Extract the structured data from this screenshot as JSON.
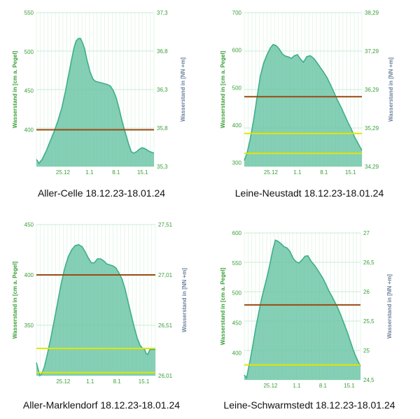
{
  "colors": {
    "area": "#3fae8c",
    "area_fill": "#6fc7a8",
    "grid_h": "#c9ecd4",
    "grid_v": "#dcf2e2",
    "left_axis": "#3a9f37",
    "right_axis": "#6d83a0",
    "brown": "#9a4a12",
    "yellow": "#e2e600",
    "red": "#cc2a2a"
  },
  "charts": [
    {
      "caption": "Aller-Celle 18.12.23-18.01.24",
      "ylabel_left": "Wasserstand in [cm a. Pegel]",
      "ylabel_right": "Wasserstand in [NN +m]"
    },
    {
      "caption": "Leine-Neustadt 18.12.23-18.01.24",
      "ylabel_left": "Wasserstand in [cm a. Pegel]",
      "ylabel_right": "Wasserstand in [NN +m]"
    },
    {
      "caption": "Aller-Marklendorf 18.12.23-18.01.24",
      "ylabel_left": "Wasserstand in [cm a. Pegel]",
      "ylabel_right": "Wasserstand in [NN +m]"
    },
    {
      "caption": "Leine-Schwarmstedt 18.12.23-18.01.24",
      "ylabel_left": "Wasserstand in [cm a. Pegel]",
      "ylabel_right": "Wasserstand in [NN +m]"
    }
  ],
  "chart_data": [
    {
      "type": "area",
      "title": "Aller-Celle 18.12.23-18.01.24",
      "x_tick_labels": [
        "25.12",
        "1.1",
        "8.1",
        "15.1"
      ],
      "x_tick_days": [
        7,
        14,
        21,
        28
      ],
      "xlim_days": [
        0,
        31
      ],
      "ylabel": "Wasserstand in [cm a. Pegel]",
      "ylim": [
        353,
        550
      ],
      "y_ticks": [
        400,
        450,
        500,
        550
      ],
      "y_tick_labels": [
        "400",
        "450",
        "500",
        "550"
      ],
      "ylabel_right": "Wasserstand in [NN +m]",
      "y_ticks_right": [
        "35,3",
        "35,8",
        "36,3",
        "36,8",
        "37,3"
      ],
      "grid": true,
      "series": [
        {
          "x": [
            0,
            0.7,
            1.5,
            2.6,
            3.6,
            4.7,
            5.7,
            6.7,
            7.6,
            8.4,
            9.2,
            9.9,
            10.5,
            11.1,
            11.6,
            12.1,
            12.7,
            13.3,
            14.1,
            14.9,
            15.6,
            16.4,
            17.2,
            17.9,
            18.7,
            19.5,
            20.3,
            21.1,
            21.9,
            22.7,
            23.5,
            24.3,
            25.0,
            25.7,
            26.4,
            27.1,
            27.8,
            28.5,
            29.2,
            29.9,
            30.5,
            31
          ],
          "values": [
            362,
            357,
            362,
            373,
            385,
            398,
            412,
            428,
            448,
            468,
            488,
            505,
            514,
            517,
            517,
            512,
            504,
            490,
            475,
            465,
            462,
            461,
            460,
            459,
            458,
            456,
            450,
            440,
            425,
            409,
            395,
            382,
            372,
            370,
            372,
            375,
            377,
            376,
            374,
            372,
            371,
            370
          ]
        }
      ],
      "reference_lines": [
        {
          "value": 400,
          "color": "#9a4a12"
        }
      ]
    },
    {
      "type": "area",
      "title": "Leine-Neustadt 18.12.23-18.01.24",
      "x_tick_labels": [
        "25.12",
        "1.1",
        "8.1",
        "15.1"
      ],
      "x_tick_days": [
        7,
        14,
        21,
        28
      ],
      "xlim_days": [
        0,
        31
      ],
      "ylabel": "Wasserstand in [cm a. Pegel]",
      "ylim": [
        290,
        700
      ],
      "y_ticks": [
        300,
        400,
        500,
        600,
        700
      ],
      "y_tick_labels": [
        "300",
        "400",
        "500",
        "600",
        "700"
      ],
      "ylabel_right": "Wasserstand in [NN +m]",
      "y_ticks_right": [
        "34,29",
        "35,29",
        "36,29",
        "37,29",
        "38,29"
      ],
      "grid": true,
      "series": [
        {
          "x": [
            0,
            0.7,
            1.5,
            2.4,
            3.3,
            4.2,
            5.1,
            6.0,
            6.8,
            7.6,
            8.4,
            9.2,
            10.0,
            10.8,
            11.6,
            12.4,
            13.2,
            14.0,
            14.8,
            15.6,
            16.5,
            17.4,
            18.3,
            19.2,
            20.1,
            21.0,
            21.9,
            22.8,
            23.7,
            24.6,
            25.5,
            26.4,
            27.3,
            28.2,
            29.0,
            29.8,
            30.5,
            31
          ],
          "values": [
            306,
            325,
            360,
            410,
            470,
            530,
            565,
            588,
            605,
            615,
            612,
            603,
            590,
            584,
            582,
            578,
            585,
            588,
            576,
            568,
            583,
            585,
            578,
            566,
            553,
            540,
            525,
            506,
            486,
            466,
            448,
            428,
            408,
            390,
            370,
            355,
            342,
            333
          ]
        }
      ],
      "reference_lines": [
        {
          "value": 476,
          "color": "#9a4a12"
        },
        {
          "value": 378,
          "color": "#e2e600"
        },
        {
          "value": 325,
          "color": "#e2e600"
        }
      ]
    },
    {
      "type": "area",
      "title": "Aller-Marklendorf 18.12.23-18.01.24",
      "x_tick_labels": [
        "25.12",
        "1.1",
        "8.1",
        "15.1"
      ],
      "x_tick_days": [
        7,
        14,
        21,
        28
      ],
      "xlim_days": [
        0,
        31
      ],
      "ylabel": "Wasserstand in [cm a. Pegel]",
      "ylim": [
        300,
        450
      ],
      "y_ticks": [
        350,
        400,
        450
      ],
      "y_tick_labels": [
        "350",
        "400",
        "450"
      ],
      "ylabel_right": "Wasserstand in [NN +m]",
      "y_ticks_right": [
        "26,01",
        "26,51",
        "27,01",
        "27,51"
      ],
      "grid": true,
      "series": [
        {
          "x": [
            0,
            0.4,
            0.9,
            1.4,
            2.1,
            2.9,
            3.8,
            4.7,
            5.6,
            6.5,
            7.4,
            8.3,
            9.2,
            10.1,
            11.0,
            11.9,
            12.7,
            13.5,
            14.3,
            15.1,
            15.9,
            16.7,
            17.5,
            18.3,
            19.1,
            19.9,
            20.7,
            21.5,
            22.3,
            23.1,
            23.9,
            24.7,
            25.5,
            26.3,
            27.0,
            27.7,
            28.2,
            28.6,
            29.0,
            29.6,
            30.3,
            31
          ],
          "values": [
            313,
            307,
            300,
            302,
            309,
            322,
            338,
            356,
            374,
            392,
            407,
            418,
            425,
            429,
            430,
            428,
            423,
            417,
            412,
            412,
            416,
            416,
            414,
            411,
            410,
            409,
            407,
            402,
            396,
            386,
            373,
            360,
            348,
            337,
            330,
            327,
            326,
            322,
            321,
            326,
            326,
            326
          ]
        }
      ],
      "reference_lines": [
        {
          "value": 400,
          "color": "#9a4a12"
        },
        {
          "value": 327,
          "color": "#e2e600"
        },
        {
          "value": 303,
          "color": "#e2e600"
        }
      ]
    },
    {
      "type": "area",
      "title": "Leine-Schwarmstedt 18.12.23-18.01.24",
      "x_tick_labels": [
        "25.12",
        "1.1",
        "8.1",
        "15.1"
      ],
      "x_tick_days": [
        7,
        14,
        21,
        28
      ],
      "xlim_days": [
        0,
        31
      ],
      "ylabel": "Wasserstand in [cm a. Pegel]",
      "ylim": [
        355,
        600
      ],
      "y_ticks": [
        400,
        450,
        500,
        550,
        600
      ],
      "y_tick_labels": [
        "400",
        "450",
        "500",
        "550",
        "600"
      ],
      "ylabel_right": "Wasserstand in [NN +m]",
      "y_ticks_right": [
        "24,5",
        "25",
        "25,5",
        "26",
        "26,5",
        "27"
      ],
      "grid": true,
      "series": [
        {
          "x": [
            0,
            0.6,
            1.3,
            2.2,
            3.0,
            3.8,
            4.6,
            5.4,
            6.2,
            6.9,
            7.6,
            8.3,
            9.0,
            9.8,
            10.6,
            11.4,
            12.2,
            13.0,
            13.8,
            14.6,
            15.4,
            16.2,
            17.0,
            17.8,
            18.6,
            19.4,
            20.2,
            21.0,
            21.8,
            22.6,
            23.4,
            24.2,
            25.0,
            25.8,
            26.6,
            27.4,
            28.2,
            29.0,
            29.8,
            30.5,
            31
          ],
          "values": [
            363,
            358,
            380,
            410,
            440,
            465,
            490,
            510,
            530,
            550,
            572,
            588,
            586,
            582,
            577,
            575,
            569,
            558,
            552,
            550,
            555,
            561,
            562,
            553,
            547,
            540,
            532,
            524,
            514,
            503,
            494,
            484,
            474,
            462,
            449,
            436,
            421,
            406,
            393,
            384,
            378
          ]
        }
      ],
      "reference_lines": [
        {
          "value": 480,
          "color": "#9a4a12"
        },
        {
          "value": 380,
          "color": "#e2e600"
        }
      ]
    }
  ]
}
